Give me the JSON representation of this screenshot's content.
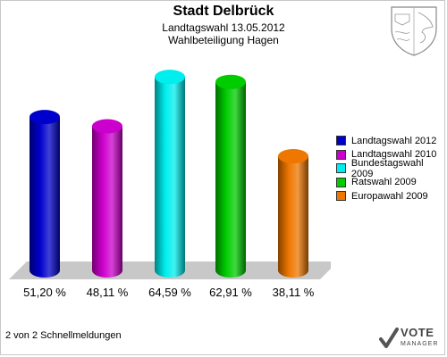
{
  "header": {
    "title": "Stadt Delbrück",
    "subtitle1": "Landtagswahl 13.05.2012",
    "subtitle2": "Wahlbeteiligung Hagen"
  },
  "footer": {
    "text": "2 von 2 Schnellmeldungen"
  },
  "logo": {
    "line1": "VOTE",
    "line2": "MANAGER"
  },
  "chart_data": {
    "type": "bar",
    "title": "Stadt Delbrück",
    "subtitle": "Landtagswahl 13.05.2012 Wahlbeteiligung Hagen",
    "categories": [
      "Landtagswahl 2012",
      "Landtagswahl 2010",
      "Bundestagswahl 2009",
      "Ratswahl 2009",
      "Europawahl 2009"
    ],
    "values": [
      51.2,
      48.11,
      64.59,
      62.91,
      38.11
    ],
    "value_labels": [
      "51,20 %",
      "48,11 %",
      "64,59 %",
      "62,91 %",
      "38,11 %"
    ],
    "colors": [
      "#0000cc",
      "#cc00cc",
      "#00eeee",
      "#00cc00",
      "#ee7700"
    ],
    "legend": {
      "position": "right",
      "items": [
        "Landtagswahl 2012",
        "Landtagswahl 2010",
        "Bundestagswahl 2009",
        "Ratswahl 2009",
        "Europawahl 2009"
      ]
    },
    "ylim": [
      0,
      70
    ],
    "grid": false
  }
}
